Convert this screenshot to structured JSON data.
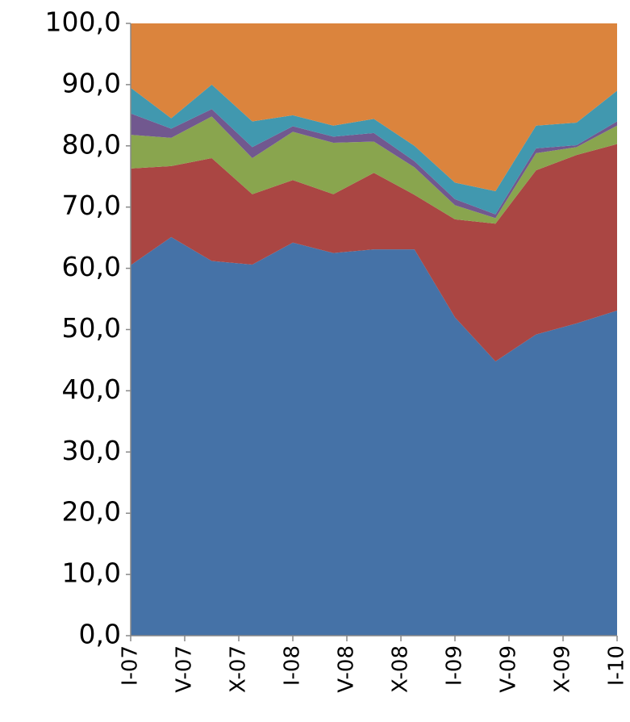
{
  "chart_data": {
    "type": "stacked_area",
    "x": [
      0,
      1,
      2,
      3,
      4,
      5,
      6,
      7,
      8,
      9,
      10,
      11,
      12
    ],
    "xlim": [
      0,
      12
    ],
    "xticks": [
      {
        "value": 0,
        "label": "I-07"
      },
      {
        "value": 1.333,
        "label": "V-07"
      },
      {
        "value": 2.667,
        "label": "X-07"
      },
      {
        "value": 4,
        "label": "I-08"
      },
      {
        "value": 5.333,
        "label": "V-08"
      },
      {
        "value": 6.667,
        "label": "X-08"
      },
      {
        "value": 8,
        "label": "I-09"
      },
      {
        "value": 9.333,
        "label": "V-09"
      },
      {
        "value": 10.667,
        "label": "X-09"
      },
      {
        "value": 12,
        "label": "I-10"
      }
    ],
    "ylim": [
      0,
      100
    ],
    "yticks": [
      {
        "value": 0,
        "label": "0,0"
      },
      {
        "value": 10,
        "label": "10,0"
      },
      {
        "value": 20,
        "label": "20,0"
      },
      {
        "value": 30,
        "label": "30,0"
      },
      {
        "value": 40,
        "label": "40,0"
      },
      {
        "value": 50,
        "label": "50,0"
      },
      {
        "value": 60,
        "label": "60,0"
      },
      {
        "value": 70,
        "label": "70,0"
      },
      {
        "value": 80,
        "label": "80,0"
      },
      {
        "value": 90,
        "label": "90,0"
      },
      {
        "value": 100,
        "label": "100,0"
      }
    ],
    "grid": false,
    "series": [
      {
        "color": "#4572a7",
        "values": [
          60.5,
          65.1,
          61.2,
          60.6,
          64.2,
          62.5,
          63.1,
          63.1,
          52.0,
          44.8,
          49.2,
          51.0,
          53.1
        ]
      },
      {
        "color": "#aa4643",
        "values": [
          15.8,
          11.6,
          16.8,
          11.5,
          10.2,
          9.6,
          12.5,
          8.9,
          16.0,
          22.5,
          26.8,
          27.5,
          27.2
        ]
      },
      {
        "color": "#89a54e",
        "values": [
          5.5,
          4.6,
          6.8,
          5.9,
          7.9,
          8.4,
          5.1,
          4.5,
          2.3,
          0.9,
          2.8,
          1.3,
          3.0
        ]
      },
      {
        "color": "#71588f",
        "values": [
          3.5,
          1.5,
          1.2,
          1.8,
          0.9,
          1.0,
          1.4,
          1.0,
          1.0,
          0.6,
          0.8,
          0.3,
          0.7
        ]
      },
      {
        "color": "#4198af",
        "values": [
          4.2,
          1.7,
          4.0,
          4.2,
          1.8,
          1.8,
          2.3,
          2.5,
          2.7,
          3.8,
          3.7,
          3.7,
          5.0
        ]
      },
      {
        "color": "#db843d",
        "values": [
          10.5,
          15.5,
          10.0,
          16.0,
          15.0,
          16.7,
          15.6,
          20.0,
          26.0,
          27.4,
          16.7,
          16.2,
          11.0
        ]
      }
    ]
  }
}
